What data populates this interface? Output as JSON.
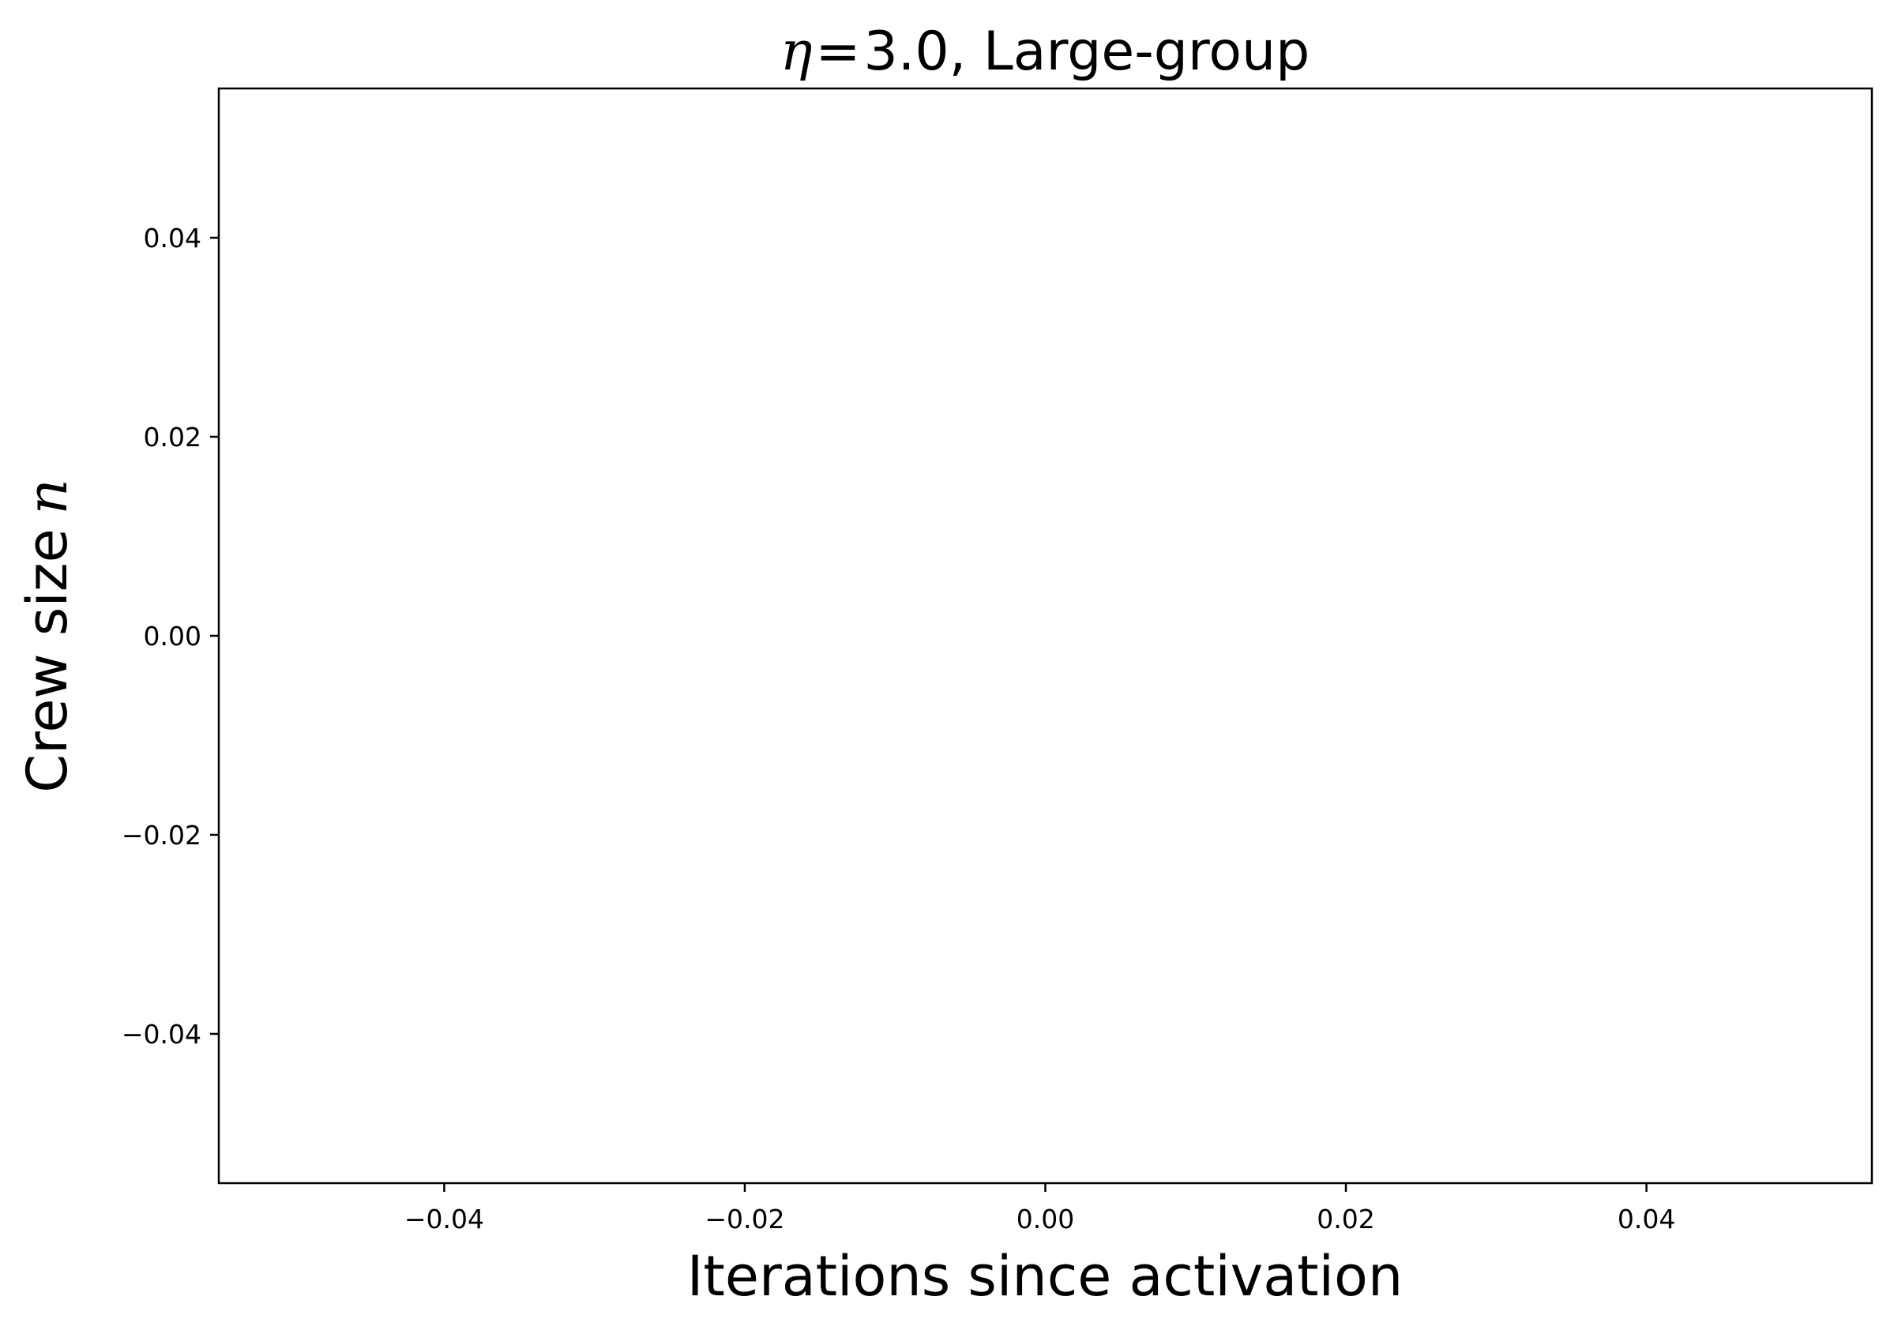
{
  "chart_data": {
    "type": "line",
    "title": {
      "symbol": "η",
      "equals": "=",
      "value": "3.0",
      "suffix": ", Large-group"
    },
    "xlabel": "Iterations since activation",
    "ylabel": {
      "text": "Crew size",
      "symbol": "n"
    },
    "xlim": [
      -0.055,
      0.055
    ],
    "ylim": [
      -0.055,
      0.055
    ],
    "xticks": [
      -0.04,
      -0.02,
      0.0,
      0.02,
      0.04
    ],
    "xtick_labels": [
      "−0.04",
      "−0.02",
      "0.00",
      "0.02",
      "0.04"
    ],
    "yticks": [
      0.04,
      0.02,
      0.0,
      -0.02,
      -0.04
    ],
    "ytick_labels": [
      "0.04",
      "0.02",
      "0.00",
      "−0.02",
      "−0.04"
    ],
    "series": [],
    "grid": false,
    "legend": "none",
    "colors": {
      "axis": "#000000",
      "background": "#ffffff"
    }
  }
}
